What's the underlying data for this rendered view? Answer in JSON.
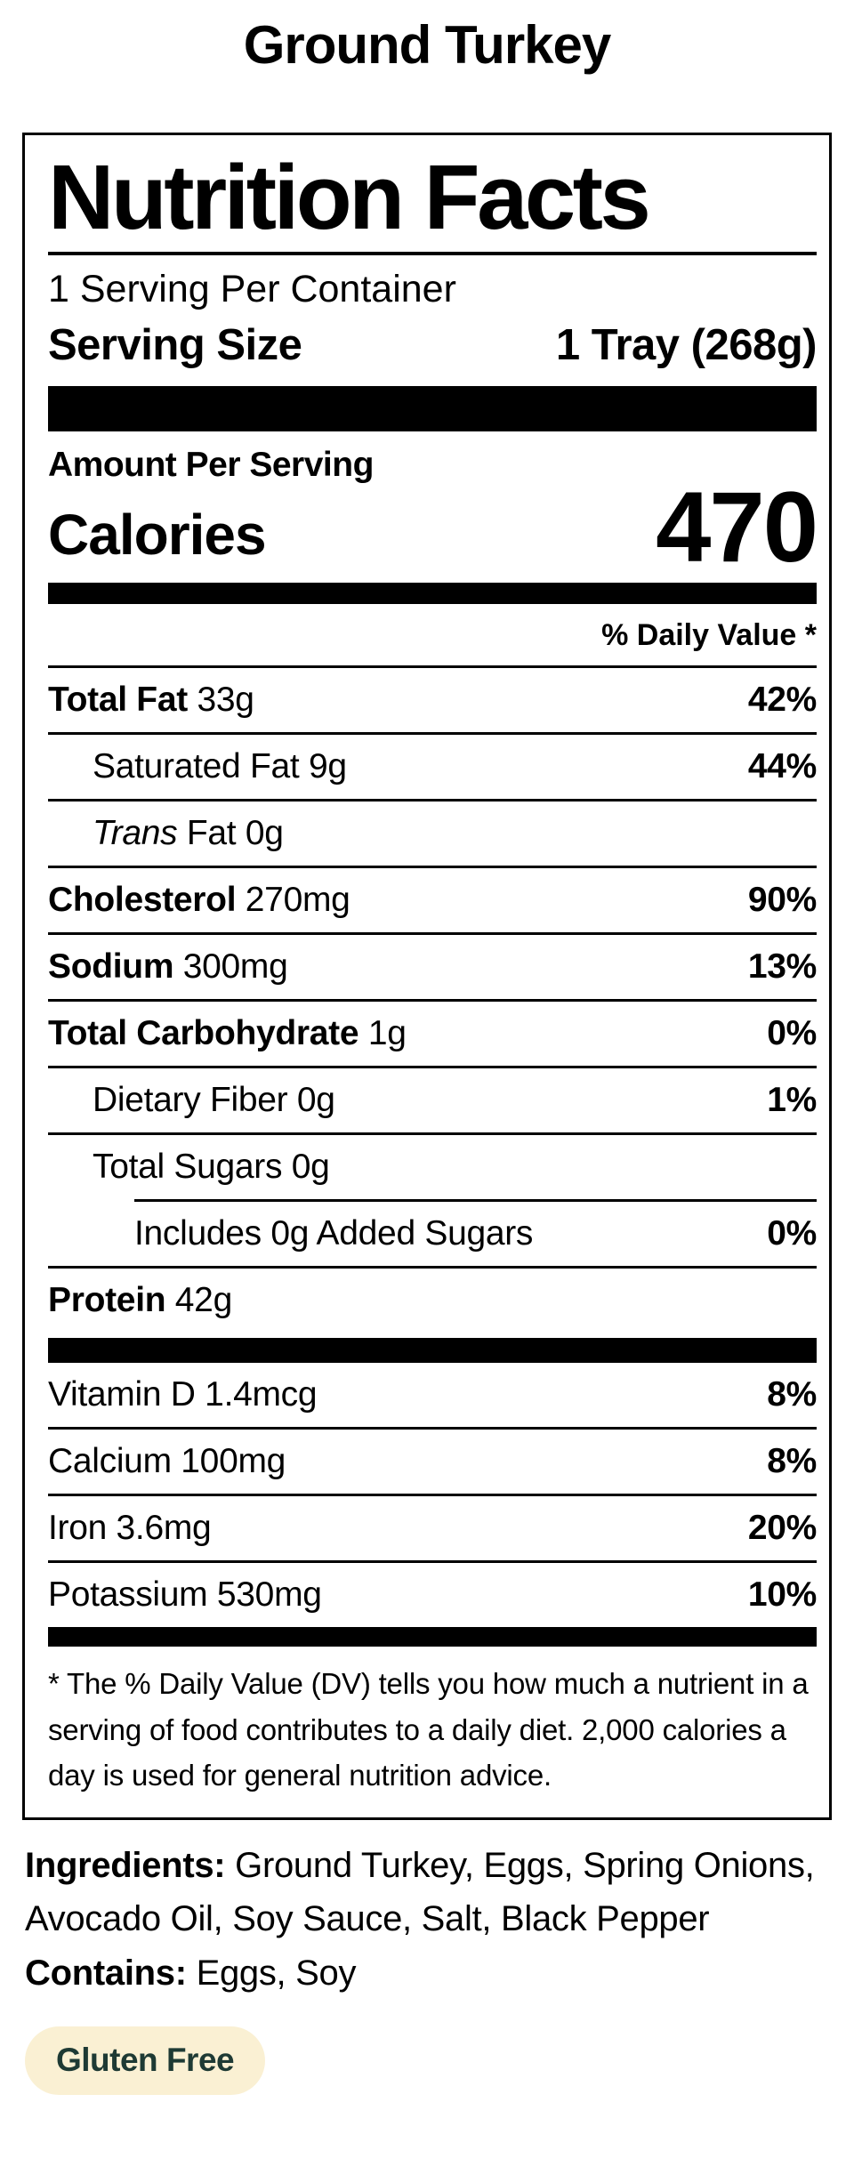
{
  "page_title": "Ground Turkey",
  "label": {
    "title": "Nutrition Facts",
    "servings_per_container": "1 Serving Per Container",
    "serving_size_label": "Serving Size",
    "serving_size_value": "1 Tray (268g)",
    "amount_per_serving": "Amount Per Serving",
    "calories_label": "Calories",
    "calories_value": "470",
    "daily_value_header": "% Daily Value *",
    "nutrients": [
      {
        "name": "Total Fat",
        "amount": "33g",
        "dv": "42%"
      },
      {
        "name": "Saturated Fat",
        "amount": "9g",
        "dv": "44%"
      },
      {
        "name": "Trans",
        "amount": "Fat 0g",
        "dv": ""
      },
      {
        "name": "Cholesterol",
        "amount": "270mg",
        "dv": "90%"
      },
      {
        "name": "Sodium",
        "amount": "300mg",
        "dv": "13%"
      },
      {
        "name": "Total Carbohydrate",
        "amount": "1g",
        "dv": "0%"
      },
      {
        "name": "Dietary Fiber",
        "amount": "0g",
        "dv": "1%"
      },
      {
        "name": "Total Sugars",
        "amount": "0g",
        "dv": ""
      },
      {
        "name": "Includes 0g Added Sugars",
        "amount": "",
        "dv": "0%"
      },
      {
        "name": "Protein",
        "amount": "42g",
        "dv": ""
      }
    ],
    "vitamins": [
      {
        "name": "Vitamin D 1.4mcg",
        "dv": "8%"
      },
      {
        "name": "Calcium 100mg",
        "dv": "8%"
      },
      {
        "name": "Iron 3.6mg",
        "dv": "20%"
      },
      {
        "name": "Potassium 530mg",
        "dv": "10%"
      }
    ],
    "footnote": "* The % Daily Value (DV) tells you how much a nutrient in a serving of food contributes to a daily diet. 2,000 calories a day is used for general nutrition advice."
  },
  "ingredients": {
    "label": "Ingredients:",
    "value": "Ground Turkey, Eggs, Spring Onions, Avocado Oil, Soy Sauce, Salt, Black Pepper"
  },
  "contains": {
    "label": "Contains:",
    "value": "Eggs, Soy"
  },
  "badge": {
    "label": "Gluten Free",
    "background_color": "#FAF0D3",
    "text_color": "#1E3A34"
  },
  "colors": {
    "label_ink": "#000000",
    "page_background": "#FFFFFF"
  }
}
